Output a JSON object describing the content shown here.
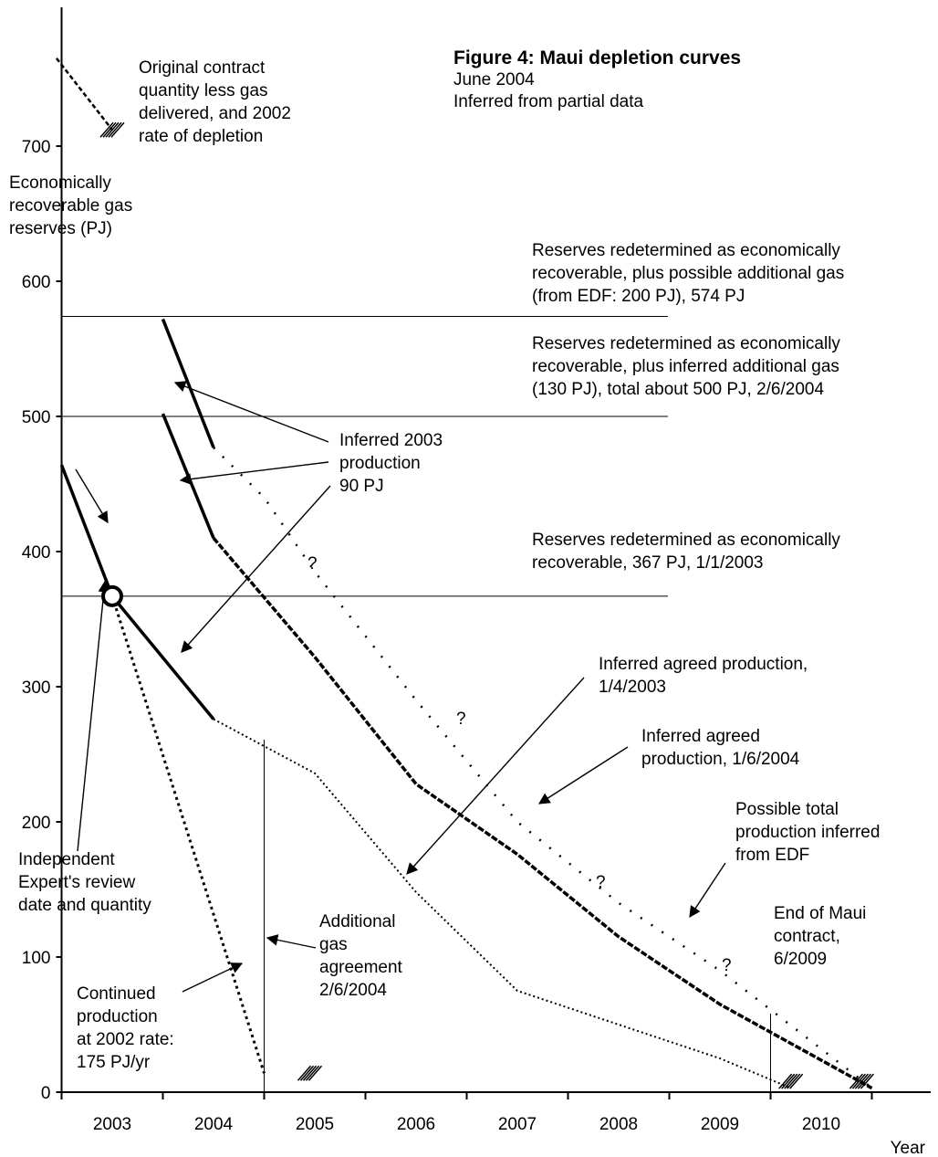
{
  "chart_data": {
    "type": "line",
    "title": "Figure 4: Maui depletion curves",
    "subtitle": [
      "June 2004",
      "Inferred from partial data"
    ],
    "ylabel": [
      "Economically",
      "recoverable gas",
      "reserves  (PJ)"
    ],
    "xlabel": "Year",
    "x_ticks": [
      "2003",
      "2004",
      "2005",
      "2006",
      "2007",
      "2008",
      "2009",
      "2010"
    ],
    "y_ticks": [
      "0",
      "100",
      "200",
      "300",
      "400",
      "500",
      "600",
      "700"
    ],
    "xlim": [
      2002.5,
      2011
    ],
    "ylim": [
      0,
      800
    ],
    "grid": false,
    "series": [
      {
        "x": [
          2002.5,
          2003,
          2004
        ],
        "y": [
          464,
          367,
          276
        ],
        "style": "solid-thick"
      },
      {
        "x": [
          2003.5,
          2004
        ],
        "y": [
          502,
          410
        ],
        "style": "solid-thick"
      },
      {
        "x": [
          2003.5,
          2004
        ],
        "y": [
          572,
          477
        ],
        "style": "solid-thick"
      },
      {
        "x": [
          2004,
          2005,
          2006,
          2007,
          2008,
          2009,
          2010.5
        ],
        "y": [
          410,
          322,
          228,
          176,
          115,
          65,
          3
        ],
        "style": "dashed-thick"
      },
      {
        "x": [
          2004,
          2005,
          2006,
          2007,
          2008,
          2009,
          2009.7
        ],
        "y": [
          276,
          236,
          148,
          75,
          50,
          25,
          3
        ],
        "style": "dotted"
      },
      {
        "x": [
          2004,
          2004.5,
          2005,
          2006,
          2007,
          2008,
          2009,
          2010.5
        ],
        "y": [
          477,
          440,
          385,
          290,
          200,
          140,
          90,
          3
        ],
        "style": "dotted-sparse"
      },
      {
        "x": [
          2003,
          2004.5
        ],
        "y": [
          367,
          14
        ],
        "style": "dotted-thick"
      },
      {
        "x": [
          2002.45,
          2003
        ],
        "y": [
          765,
          712
        ],
        "style": "dashed"
      }
    ],
    "reference_lines": [
      {
        "y": 574,
        "label": [
          "Reserves redetermined as economically",
          "recoverable, plus possible additional gas",
          "(from EDF: 200 PJ), 574 PJ"
        ]
      },
      {
        "y": 500,
        "label": [
          "Reserves redetermined as economically",
          "recoverable, plus inferred additional gas",
          "(130 PJ), total about 500 PJ, 2/6/2004"
        ]
      },
      {
        "y": 367,
        "label": [
          "Reserves redetermined as economically",
          "recoverable, 367 PJ, 1/1/2003"
        ]
      }
    ],
    "vertical_lines": [
      {
        "x": 2004.5,
        "label": [
          "Additional",
          "gas",
          "agreement",
          "2/6/2004"
        ]
      },
      {
        "x": 2009.5,
        "label": [
          "End of Maui",
          "contract,",
          "6/2009"
        ]
      }
    ],
    "marker": {
      "x": 2003,
      "y": 367,
      "label": [
        "Independent",
        "Expert's review",
        "date and quantity"
      ]
    },
    "question_marks": [
      "?",
      "?",
      "?",
      "?"
    ],
    "annotations": {
      "original": [
        "Original contract",
        "quantity less gas",
        "delivered, and 2002",
        "rate of depletion"
      ],
      "inferred_2003": [
        "Inferred 2003",
        "production",
        "90 PJ"
      ],
      "agreed_2003": [
        "Inferred agreed production,",
        "1/4/2003"
      ],
      "agreed_2004": [
        "Inferred agreed",
        "production, 1/6/2004"
      ],
      "possible": [
        "Possible total",
        "production inferred",
        "from EDF"
      ],
      "continued": [
        "Continued",
        "production",
        "at 2002 rate:",
        "175 PJ/yr"
      ]
    }
  }
}
